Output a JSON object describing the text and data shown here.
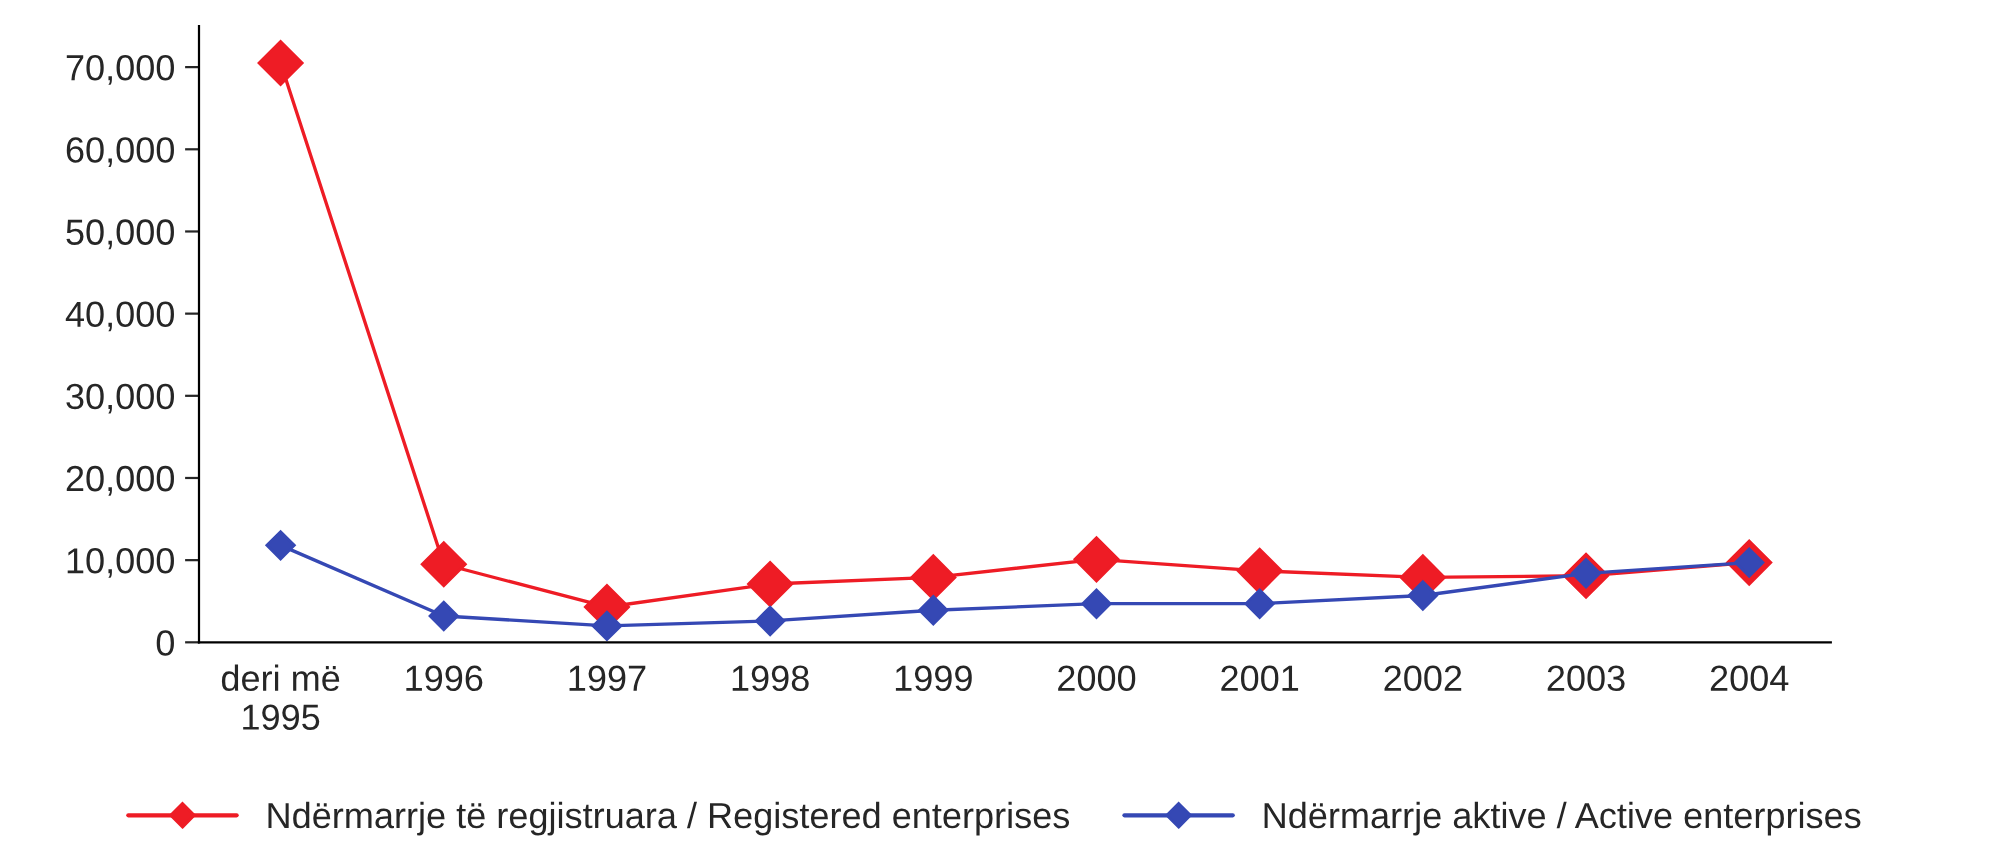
{
  "chart_data": {
    "type": "line",
    "categories": [
      "deri më\n1995",
      "1996",
      "1997",
      "1998",
      "1999",
      "2000",
      "2001",
      "2002",
      "2003",
      "2004"
    ],
    "series": [
      {
        "name": "Ndërmarrje të regjistruara / Registered enterprises",
        "color": "#ee1c25",
        "values": [
          70500,
          9500,
          4300,
          7100,
          7900,
          10100,
          8700,
          7900,
          8100,
          9700
        ]
      },
      {
        "name": "Ndërmarrje aktive / Active enterprises",
        "color": "#3548b4",
        "values": [
          11800,
          3200,
          2000,
          2600,
          3900,
          4700,
          4700,
          5700,
          8400,
          9700
        ]
      }
    ],
    "ylim": [
      0,
      75000
    ],
    "yticks": [
      {
        "value": 0,
        "label": "0"
      },
      {
        "value": 10000,
        "label": "10,000"
      },
      {
        "value": 20000,
        "label": "20,000"
      },
      {
        "value": 30000,
        "label": "30,000"
      },
      {
        "value": 40000,
        "label": "40,000"
      },
      {
        "value": 50000,
        "label": "50,000"
      },
      {
        "value": 60000,
        "label": "60,000"
      },
      {
        "value": 70000,
        "label": "70,000"
      }
    ],
    "marker": "diamond",
    "line_style": "solid",
    "grid": false,
    "legend": "bottom"
  }
}
